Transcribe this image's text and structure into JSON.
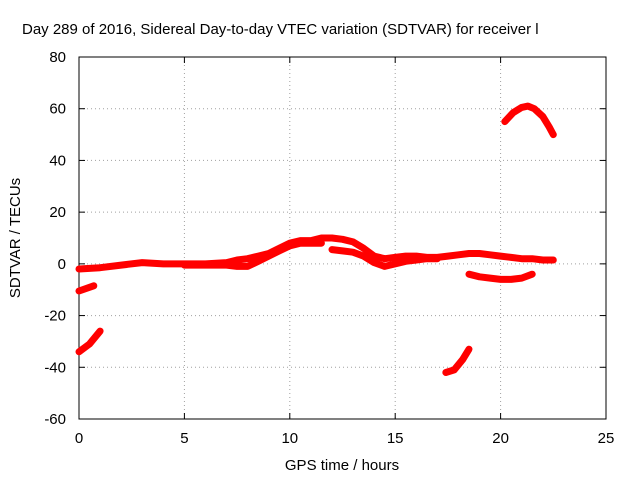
{
  "chart_data": {
    "type": "scatter",
    "title": "Day 289 of 2016, Sidereal Day-to-day VTEC variation (SDTVAR) for receiver l",
    "xlabel": "GPS time / hours",
    "ylabel": "SDTVAR / TECUs",
    "xlim": [
      0,
      25
    ],
    "ylim": [
      -60,
      80
    ],
    "xticks": [
      0,
      5,
      10,
      15,
      20,
      25
    ],
    "yticks": [
      -60,
      -40,
      -20,
      0,
      20,
      40,
      60,
      80
    ],
    "grid": true,
    "legend": "none",
    "color": "#ff0000",
    "series": [
      {
        "segments": [
          [
            [
              0.0,
              -2
            ],
            [
              1.0,
              -1.5
            ],
            [
              2.0,
              -0.5
            ],
            [
              3.0,
              0.5
            ],
            [
              4.0,
              0
            ],
            [
              5.0,
              0
            ],
            [
              6.0,
              0
            ],
            [
              7.0,
              0.5
            ],
            [
              7.5,
              1.5
            ],
            [
              8.0,
              2
            ],
            [
              8.5,
              3
            ],
            [
              9.0,
              4
            ],
            [
              9.5,
              6
            ],
            [
              10.0,
              8
            ],
            [
              10.5,
              9
            ],
            [
              11.0,
              9
            ],
            [
              11.5,
              10
            ],
            [
              12.0,
              10
            ],
            [
              12.5,
              9.5
            ],
            [
              13.0,
              8.5
            ],
            [
              13.5,
              6
            ],
            [
              14.0,
              3
            ],
            [
              14.5,
              2
            ],
            [
              15.0,
              2.5
            ],
            [
              15.5,
              3
            ],
            [
              16.0,
              3
            ],
            [
              16.5,
              2.5
            ],
            [
              17.0,
              2.5
            ],
            [
              17.5,
              3
            ],
            [
              18.0,
              3.5
            ],
            [
              18.5,
              4
            ],
            [
              19.0,
              4
            ],
            [
              19.5,
              3.5
            ],
            [
              20.0,
              3
            ],
            [
              20.5,
              2.5
            ],
            [
              21.0,
              2
            ],
            [
              21.5,
              2
            ],
            [
              22.0,
              1.5
            ],
            [
              22.5,
              1.5
            ]
          ],
          [
            [
              5.0,
              -0.5
            ],
            [
              6.0,
              -0.5
            ],
            [
              6.5,
              -0.5
            ],
            [
              7.0,
              -0.5
            ],
            [
              7.5,
              -1
            ],
            [
              8.0,
              -1
            ],
            [
              8.5,
              1
            ],
            [
              9.0,
              3
            ],
            [
              9.5,
              5
            ],
            [
              10.0,
              7
            ],
            [
              10.5,
              8
            ],
            [
              11.0,
              8
            ],
            [
              11.5,
              8
            ]
          ],
          [
            [
              12.0,
              5.5
            ],
            [
              12.5,
              5
            ],
            [
              13.0,
              4.5
            ],
            [
              13.5,
              3
            ],
            [
              14.0,
              0.5
            ],
            [
              14.5,
              -1
            ],
            [
              15.0,
              0
            ],
            [
              15.5,
              1
            ],
            [
              16.0,
              1.5
            ],
            [
              16.5,
              2
            ],
            [
              17.0,
              2
            ]
          ],
          [
            [
              0.0,
              -10.5
            ],
            [
              0.7,
              -8.5
            ]
          ],
          [
            [
              0.0,
              -34
            ],
            [
              0.5,
              -31
            ],
            [
              1.0,
              -26
            ]
          ],
          [
            [
              17.4,
              -42
            ],
            [
              17.8,
              -41
            ],
            [
              18.2,
              -37
            ],
            [
              18.5,
              -33
            ]
          ],
          [
            [
              18.5,
              -4
            ],
            [
              19.0,
              -5
            ],
            [
              19.5,
              -5.5
            ],
            [
              20.0,
              -6
            ],
            [
              20.5,
              -6
            ],
            [
              21.0,
              -5.5
            ],
            [
              21.5,
              -4
            ]
          ],
          [
            [
              20.2,
              55
            ],
            [
              20.6,
              58.5
            ],
            [
              21.0,
              60.5
            ],
            [
              21.3,
              61
            ],
            [
              21.6,
              60
            ],
            [
              22.0,
              57
            ],
            [
              22.3,
              53
            ],
            [
              22.5,
              50
            ]
          ]
        ]
      }
    ]
  }
}
